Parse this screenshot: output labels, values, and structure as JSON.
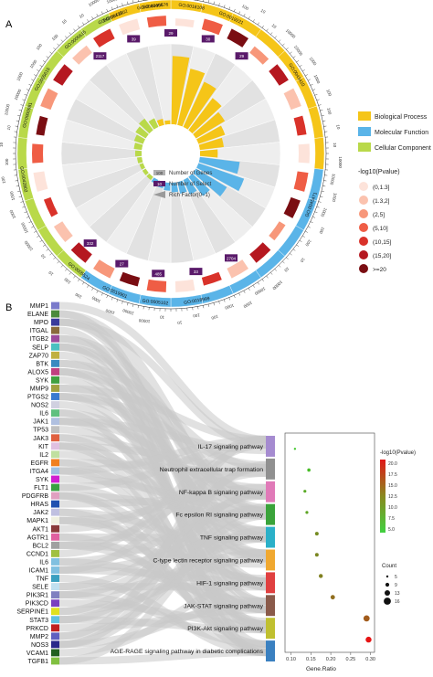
{
  "panel_a": {
    "label": "A",
    "go_categories": [
      {
        "name": "Biological Process",
        "color": "#f5c518"
      },
      {
        "name": "Molecular Function",
        "color": "#5ab4e8"
      },
      {
        "name": "Cellular Component",
        "color": "#b9d94a"
      }
    ],
    "go_terms_top": [
      "GO:0005737",
      "GO:0043406",
      "GO:0018108",
      "GO:0019221"
    ],
    "go_terms_right": [
      "GO:0043410",
      "GO:0045471"
    ],
    "go_terms_bottom": [
      "GO:0018999",
      "GO:0005102",
      "GO:0019901",
      "GO:0005524"
    ],
    "go_terms_left": [
      "GO:0042802",
      "GO:0000981",
      "GO:0005615",
      "GO:0005615",
      "GO:0042802",
      "GO:0005576"
    ],
    "select_counts_top": [
      "2117",
      "39",
      "29",
      "30",
      "29"
    ],
    "select_counts_bottom": [
      "2704",
      "33",
      "485",
      "27",
      "332"
    ],
    "center_legend": {
      "genes": {
        "value": "100",
        "label": "Number of Genes"
      },
      "select": {
        "value": "10",
        "label": "Number of Select"
      },
      "rich": {
        "label": "Rich Factor(0~1)"
      }
    },
    "pvalue_legend": {
      "title": "-log10(Pvalue)",
      "bins": [
        {
          "label": "(0,1.3]",
          "color": "#fde3da"
        },
        {
          "label": "(1.3,2]",
          "color": "#fbc2ae"
        },
        {
          "label": "(2,5]",
          "color": "#f7977a"
        },
        {
          "label": "(5,10]",
          "color": "#ef5d45"
        },
        {
          "label": "(10,15]",
          "color": "#d9322a"
        },
        {
          "label": "(15,20]",
          "color": "#b51820"
        },
        {
          "label": ">=20",
          "color": "#7a0d12"
        }
      ]
    },
    "scale_ticks": [
      "10000",
      "1000",
      "100",
      "10"
    ]
  },
  "panel_b": {
    "label": "B",
    "genes": [
      {
        "name": "MMP1",
        "color": "#7a7acb"
      },
      {
        "name": "ELANE",
        "color": "#4a8a3c"
      },
      {
        "name": "MPO",
        "color": "#3a3a9b"
      },
      {
        "name": "ITGAL",
        "color": "#8a6a3c"
      },
      {
        "name": "ITGB2",
        "color": "#9b4a9b"
      },
      {
        "name": "SELP",
        "color": "#4ac0c0"
      },
      {
        "name": "ZAP70",
        "color": "#c0b040"
      },
      {
        "name": "BTK",
        "color": "#3a8ac0"
      },
      {
        "name": "ALOX5",
        "color": "#c04080"
      },
      {
        "name": "SYK",
        "color": "#40a040"
      },
      {
        "name": "MMP9",
        "color": "#a0a040"
      },
      {
        "name": "PTGS2",
        "color": "#3a7ad0"
      },
      {
        "name": "NOS2",
        "color": "#d0d0e0"
      },
      {
        "name": "IL6",
        "color": "#60c080"
      },
      {
        "name": "JAK1",
        "color": "#b0c0e0"
      },
      {
        "name": "TP53",
        "color": "#c0c0c0"
      },
      {
        "name": "JAK3",
        "color": "#e06040"
      },
      {
        "name": "KIT",
        "color": "#e0c0e0"
      },
      {
        "name": "IL2",
        "color": "#c0e0a0"
      },
      {
        "name": "EGFR",
        "color": "#f08020"
      },
      {
        "name": "ITGA4",
        "color": "#a0c0e0"
      },
      {
        "name": "SYK",
        "color": "#d020d0"
      },
      {
        "name": "FLT1",
        "color": "#3aa040"
      },
      {
        "name": "PDGFRB",
        "color": "#e0a0c0"
      },
      {
        "name": "HRAS",
        "color": "#2050b0"
      },
      {
        "name": "JAK2",
        "color": "#c0c0e0"
      },
      {
        "name": "MAPK1",
        "color": "#f0f0e0"
      },
      {
        "name": "AKT1",
        "color": "#8a3a3a"
      },
      {
        "name": "AGTR1",
        "color": "#e060a0"
      },
      {
        "name": "BCL2",
        "color": "#a0a0a0"
      },
      {
        "name": "CCND1",
        "color": "#a0c040"
      },
      {
        "name": "IL6",
        "color": "#80c0e0"
      },
      {
        "name": "ICAM1",
        "color": "#80c0e0"
      },
      {
        "name": "TNF",
        "color": "#3aa0c0"
      },
      {
        "name": "SELE",
        "color": "#c0e0f0"
      },
      {
        "name": "PIK3R1",
        "color": "#8080c0"
      },
      {
        "name": "PIK3CD",
        "color": "#7a40c0"
      },
      {
        "name": "SERPINE1",
        "color": "#e0e020"
      },
      {
        "name": "STAT3",
        "color": "#60c0e0"
      },
      {
        "name": "PRKCD",
        "color": "#c02020"
      },
      {
        "name": "MMP2",
        "color": "#6060c0"
      },
      {
        "name": "NOS3",
        "color": "#2a2a8a"
      },
      {
        "name": "VCAM1",
        "color": "#206020"
      },
      {
        "name": "TGFB1",
        "color": "#80c040"
      }
    ],
    "pathways": [
      {
        "name": "IL-17 signaling pathway",
        "color": "#a58bd0",
        "gene_ratio": 0.11,
        "count": 5,
        "logp": 5.2
      },
      {
        "name": "Neutrophil extracellular trap formation",
        "color": "#909090",
        "gene_ratio": 0.145,
        "count": 8,
        "logp": 6.0
      },
      {
        "name": "NF-kappa B signaling pathway",
        "color": "#e07ab8",
        "gene_ratio": 0.135,
        "count": 7,
        "logp": 7.5
      },
      {
        "name": "Fc epsilon RI signaling pathway",
        "color": "#3aa33a",
        "gene_ratio": 0.14,
        "count": 7,
        "logp": 8.0
      },
      {
        "name": "TNF signaling pathway",
        "color": "#2bb0c8",
        "gene_ratio": 0.165,
        "count": 9,
        "logp": 10.0
      },
      {
        "name": "C-type lectin receptor signaling pathway",
        "color": "#f0a830",
        "gene_ratio": 0.165,
        "count": 9,
        "logp": 10.5
      },
      {
        "name": "HIF-1 signaling pathway",
        "color": "#e04040",
        "gene_ratio": 0.175,
        "count": 10,
        "logp": 11.0
      },
      {
        "name": "JAK-STAT signaling pathway",
        "color": "#8a5a4a",
        "gene_ratio": 0.205,
        "count": 11,
        "logp": 12.5
      },
      {
        "name": "PI3K-Akt signaling pathway",
        "color": "#c0c030",
        "gene_ratio": 0.29,
        "count": 16,
        "logp": 14.0
      },
      {
        "name": "AGE-RAGE signaling pathway in diabetic complications",
        "color": "#3a80c0",
        "gene_ratio": 0.295,
        "count": 15,
        "logp": 20.0
      }
    ],
    "dot_plot": {
      "xlabel": "Gene.Ratio",
      "xticks": [
        0.1,
        0.15,
        0.2,
        0.25,
        0.3
      ],
      "xlim": [
        0.085,
        0.31
      ],
      "colorbar_title": "-log10(Pvalue)",
      "colorbar_ticks": [
        "20.0",
        "17.5",
        "15.0",
        "12.5",
        "10.0",
        "7.5",
        "5.0"
      ],
      "count_title": "Count",
      "count_legend": [
        "5",
        "9",
        "13",
        "16"
      ]
    }
  }
}
